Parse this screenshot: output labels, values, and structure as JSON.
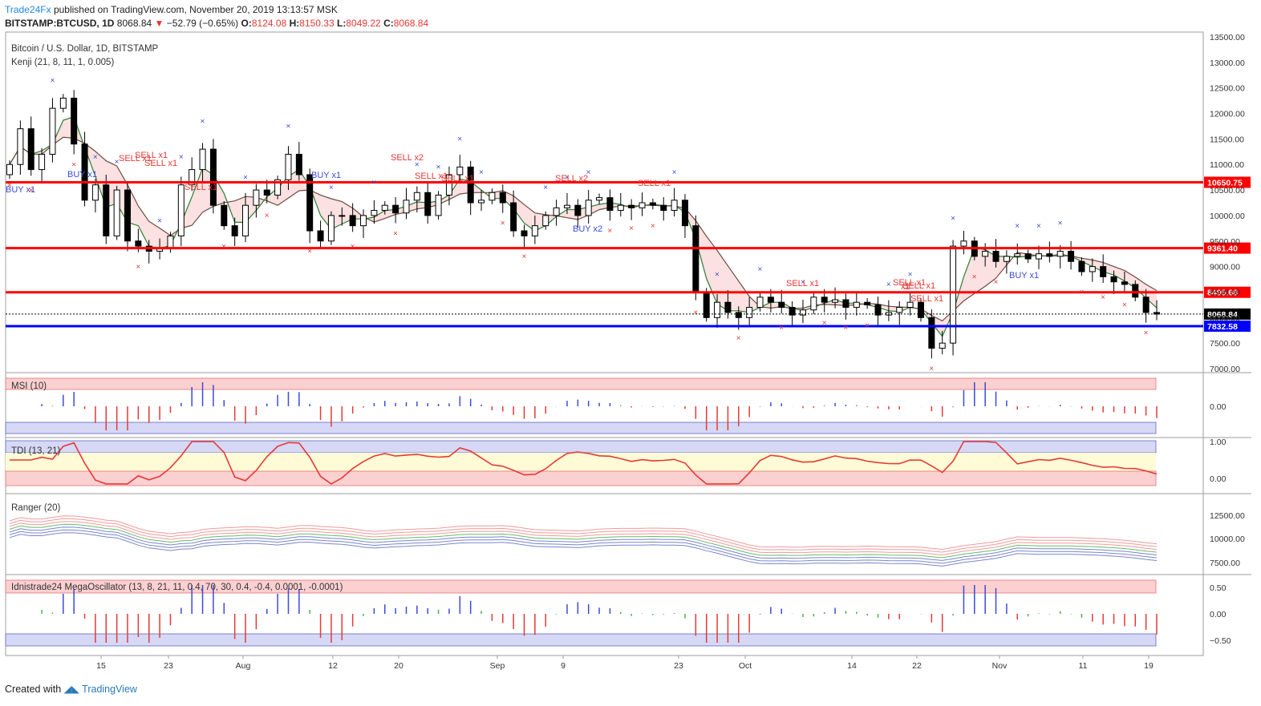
{
  "header": {
    "publisher": "Trade24Fx",
    "published_text": "published on TradingView.com, November 20, 2019 13:13:57 MSK",
    "symbol": "BITSTAMP:BTCUSD, 1D",
    "last": "8068.84",
    "arrow": "▼",
    "change": "−52.79 (−0.65%)",
    "o_label": "O:",
    "o": "8124.08",
    "h_label": "H:",
    "h": "8150.33",
    "l_label": "L:",
    "l": "8049.22",
    "c_label": "C:",
    "c": "8068.84"
  },
  "legend": {
    "main": "Bitcoin / U.S. Dollar, 1D, BITSTAMP",
    "kenji": "Kenji (21, 8, 11, 1, 0.005)"
  },
  "price_axis": {
    "ticks": [
      "13500.00",
      "13000.00",
      "12500.00",
      "12000.00",
      "11500.00",
      "11000.00",
      "10500.00",
      "10000.00",
      "9500.00",
      "9000.00",
      "8500.00",
      "8000.00",
      "7500.00",
      "7000.00"
    ],
    "levels": [
      {
        "label": "10650.75",
        "value": 10650.75,
        "color": "#ff0000"
      },
      {
        "label": "9361.40",
        "value": 9361.4,
        "color": "#ff0000"
      },
      {
        "label": "8495.68",
        "value": 8495.68,
        "color": "#ff0000"
      },
      {
        "label": "7832.58",
        "value": 7832.58,
        "color": "#0000ff"
      }
    ],
    "last_label": "8068.84"
  },
  "signals": [
    "BUY x1",
    "BUY x1",
    "BUY x1",
    "BUY x2",
    "BUY x1",
    "SELL x1",
    "SELL x1",
    "SELL x1",
    "SELL x1",
    "SELL x2",
    "SELL x1",
    "SELL x1",
    "SELL x2",
    "SELL x1",
    "SELL x1",
    "SELL x1",
    "SELL x1",
    "SELL x1",
    "x1"
  ],
  "panes": {
    "msi": {
      "label": "MSI (10)",
      "ticks": [
        "0.00"
      ]
    },
    "tdi": {
      "label": "TDI (13, 21)",
      "ticks": [
        "1.00",
        "0.00"
      ]
    },
    "ranger": {
      "label": "Ranger (20)",
      "ticks": [
        "12500.00",
        "10000.00",
        "7500.00"
      ]
    },
    "mega": {
      "label": "Idnistrade24 MegaOscillator (13, 8, 21, 11, 0.4, 70, 30, 0.4, -0.4, 0.0001, -0.0001)",
      "ticks": [
        "0.50",
        "0.00",
        "−0.50"
      ]
    }
  },
  "time_axis": [
    "15",
    "23",
    "Aug",
    "12",
    "20",
    "Sep",
    "9",
    "23",
    "Oct",
    "14",
    "22",
    "Nov",
    "11",
    "19"
  ],
  "colors": {
    "up": "#ffffff",
    "down": "#000000",
    "red_line": "#ff0000",
    "blue_line": "#0000ff",
    "buy": "#3a4bd8",
    "sell": "#e53935"
  },
  "footer": {
    "created_with": "Created with",
    "brand": "TradingView"
  },
  "chart_data": {
    "type": "candlestick",
    "title": "Bitcoin / U.S. Dollar, 1D, BITSTAMP",
    "ylim": [
      7000,
      13500
    ],
    "horizontal_levels": [
      10650.75,
      9361.4,
      8495.68,
      7832.58
    ],
    "close_series": [
      11000,
      11700,
      10900,
      11200,
      12100,
      12300,
      11400,
      10300,
      10600,
      9600,
      10500,
      9500,
      9400,
      9300,
      9350,
      9600,
      10600,
      10900,
      11300,
      10200,
      9800,
      9600,
      10200,
      10500,
      10400,
      10700,
      11200,
      10800,
      9700,
      9500,
      10000,
      10000,
      9800,
      10000,
      10100,
      10200,
      10050,
      10300,
      10450,
      10000,
      10400,
      10800,
      10950,
      10250,
      10300,
      10450,
      10250,
      9700,
      9600,
      9800,
      10000,
      10150,
      10200,
      10000,
      10300,
      10350,
      10100,
      10200,
      10150,
      10250,
      10200,
      10100,
      10300,
      9800,
      8500,
      8000,
      8300,
      8100,
      8000,
      8200,
      8400,
      8300,
      8200,
      8050,
      8150,
      8400,
      8300,
      8350,
      8200,
      8300,
      8250,
      8050,
      8100,
      8200,
      8300,
      8000,
      7400,
      7500,
      9400,
      9500,
      9200,
      9300,
      9100,
      9200,
      9250,
      9150,
      9250,
      9200,
      9300,
      9100,
      8900,
      9000,
      8800,
      8700,
      8650,
      8400,
      8100,
      8068.84
    ],
    "panes": [
      "MSI (10)",
      "TDI (13, 21)",
      "Ranger (20)",
      "Idnistrade24 MegaOscillator"
    ]
  }
}
